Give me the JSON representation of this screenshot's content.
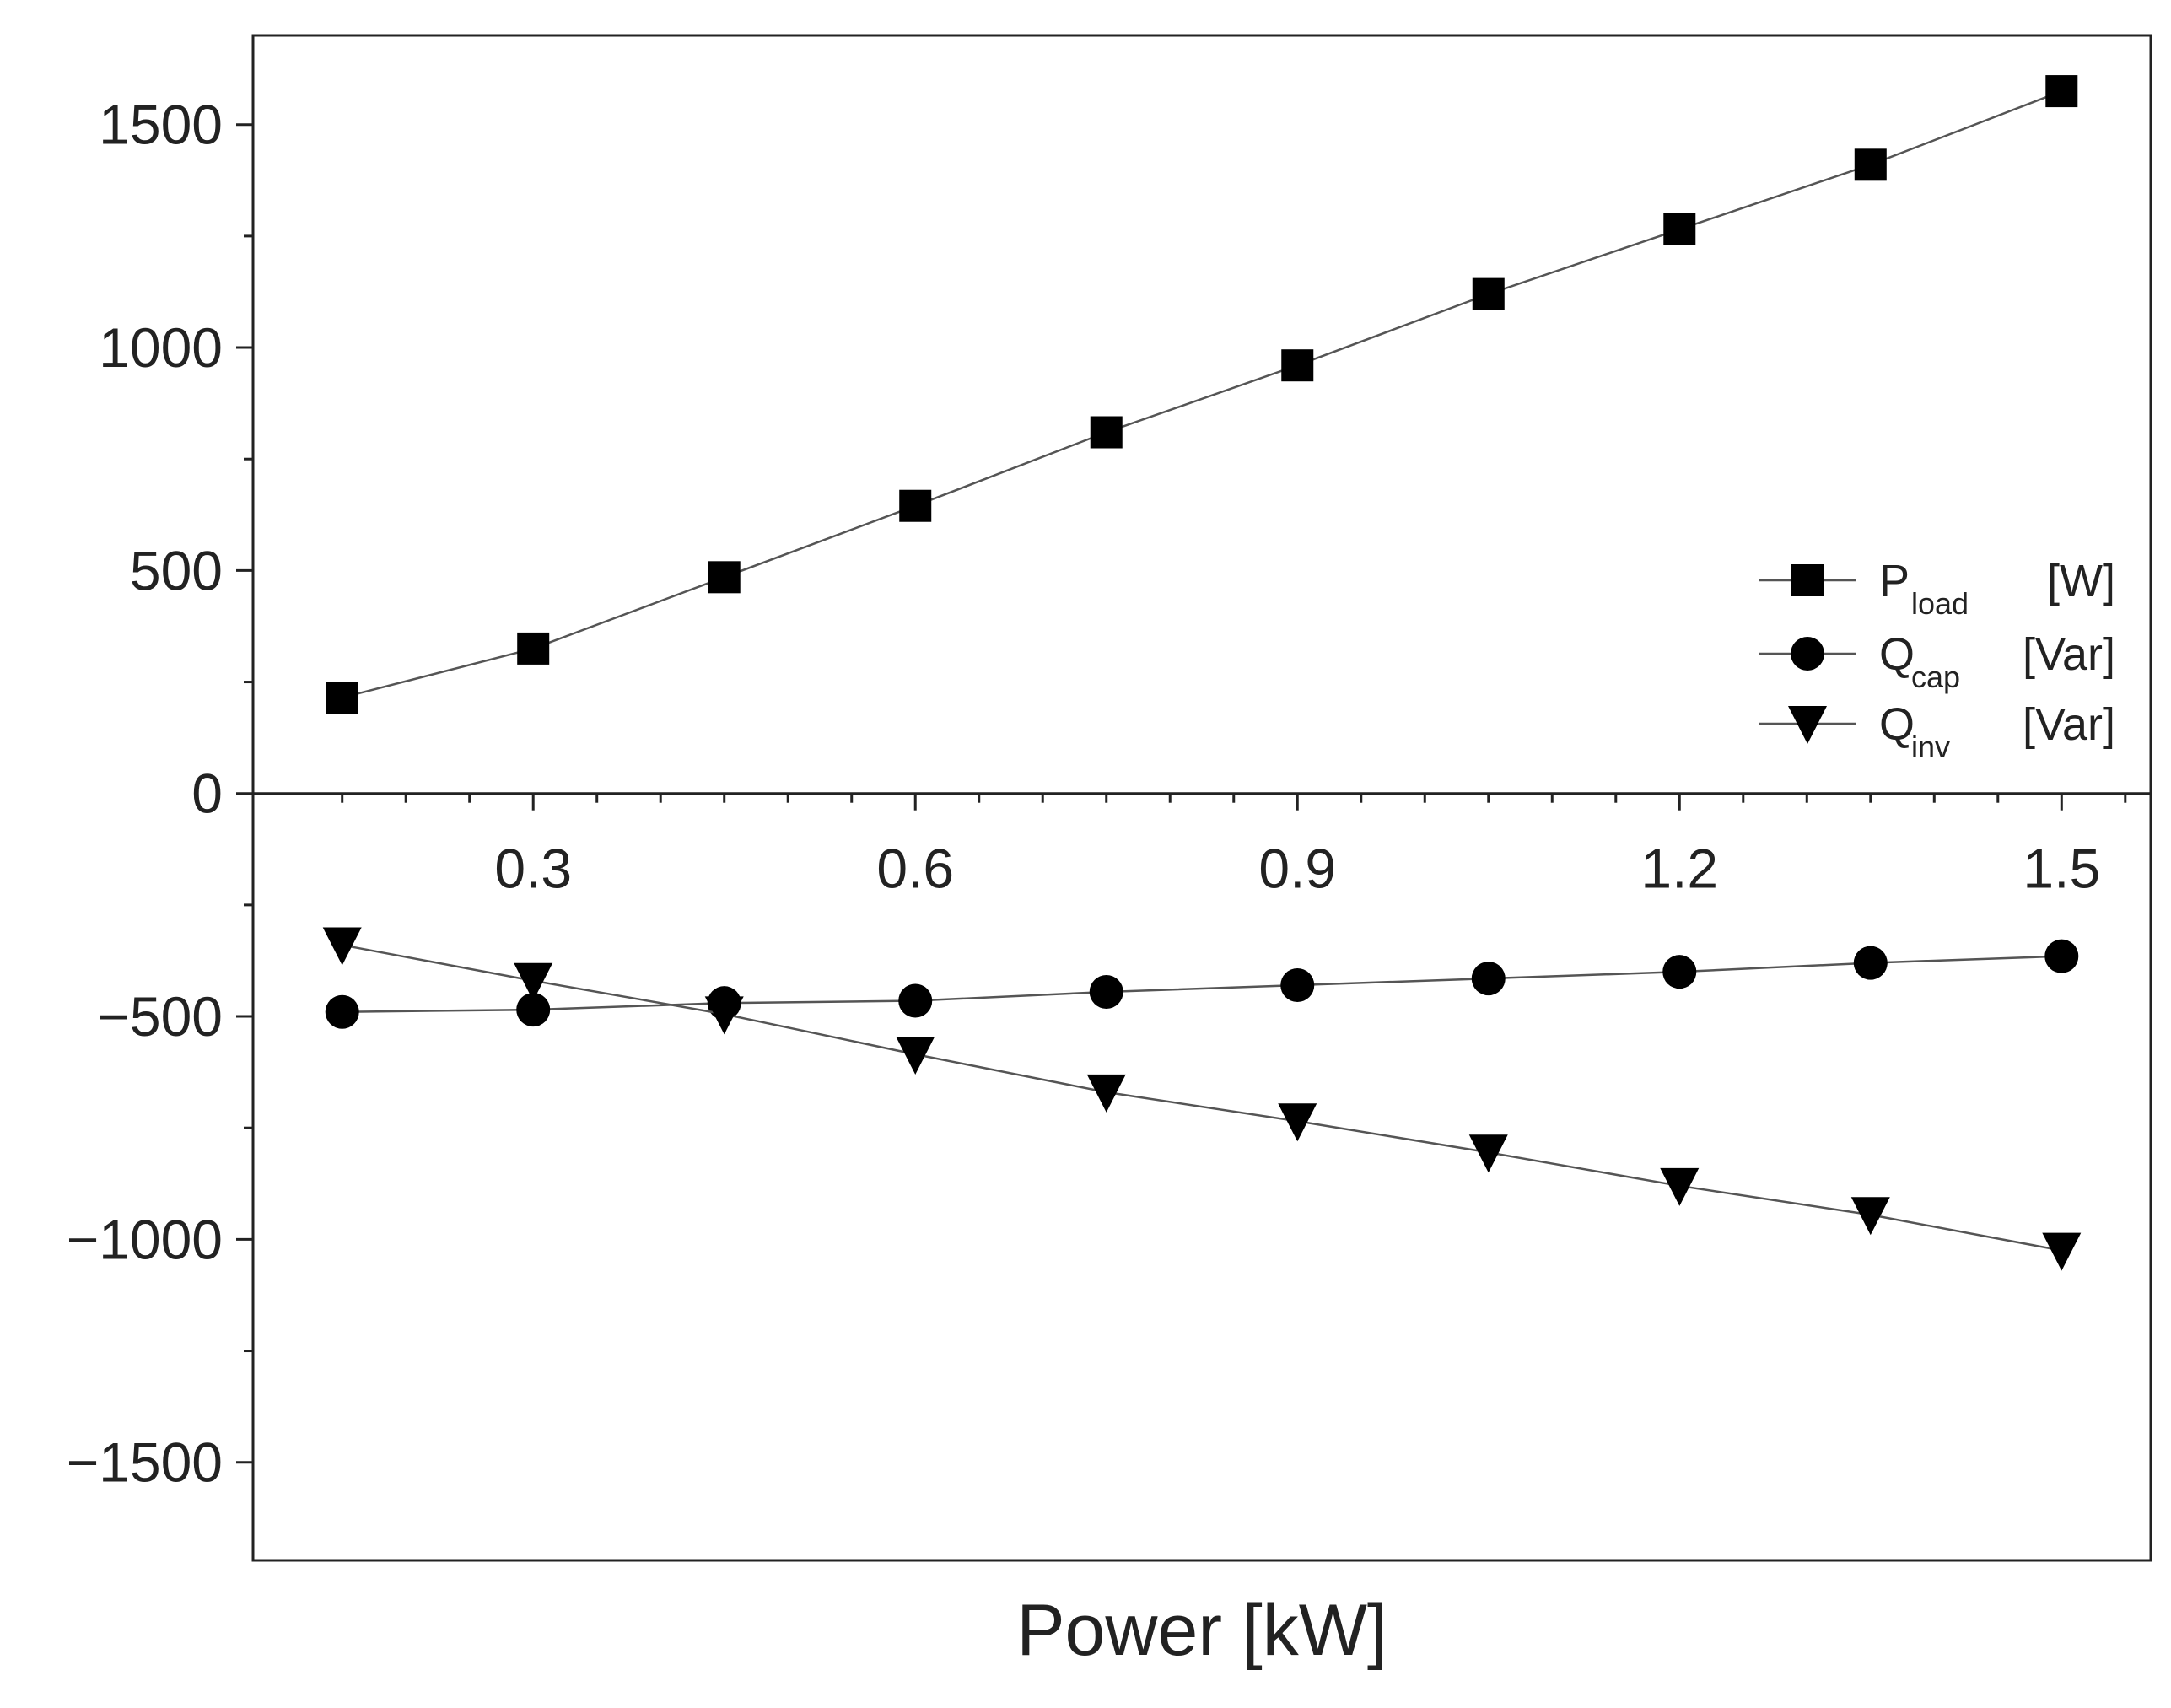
{
  "chart_data": {
    "type": "line",
    "title": "",
    "xlabel": "Power [kW]",
    "ylabel": "",
    "xlim": [
      0.08,
      1.57
    ],
    "ylim": [
      -1720,
      1700
    ],
    "x_ticks": [
      0.3,
      0.6,
      0.9,
      1.2,
      1.5
    ],
    "x_tick_labels": [
      "0.3",
      "0.6",
      "0.9",
      "1.2",
      "1.5"
    ],
    "x_minor_ticks": [
      0.15,
      0.2,
      0.25,
      0.35,
      0.4,
      0.45,
      0.5,
      0.55,
      0.65,
      0.7,
      0.75,
      0.8,
      0.85,
      0.95,
      1.0,
      1.05,
      1.1,
      1.15,
      1.25,
      1.3,
      1.35,
      1.4,
      1.45,
      1.55
    ],
    "y_ticks": [
      -1500,
      -1000,
      -500,
      0,
      500,
      1000,
      1500
    ],
    "y_tick_labels": [
      "−1500",
      "−1000",
      "−500",
      "0",
      "500",
      "1000",
      "1500"
    ],
    "y_minor_ticks": [
      -1250,
      -750,
      -250,
      250,
      750,
      1250
    ],
    "x": [
      0.15,
      0.3,
      0.45,
      0.6,
      0.75,
      0.9,
      1.05,
      1.2,
      1.35,
      1.5
    ],
    "series": [
      {
        "name": "P_load [W]",
        "label_main": "P",
        "label_sub": "load",
        "label_unit": "[W]",
        "marker": "square",
        "values": [
          215,
          325,
          485,
          645,
          810,
          960,
          1120,
          1265,
          1410,
          1575
        ]
      },
      {
        "name": "Q_cap [Var]",
        "label_main": "Q",
        "label_sub": "cap",
        "label_unit": "[Var]",
        "marker": "circle",
        "values": [
          -490,
          -485,
          -470,
          -465,
          -445,
          -430,
          -415,
          -400,
          -380,
          -365
        ]
      },
      {
        "name": "Q_inv [Var]",
        "label_main": "Q",
        "label_sub": "inv",
        "label_unit": "[Var]",
        "marker": "triangle-down",
        "values": [
          -340,
          -420,
          -495,
          -585,
          -670,
          -735,
          -805,
          -880,
          -945,
          -1025
        ]
      }
    ],
    "legend_position": "right-center",
    "grid": false
  },
  "colors": {
    "marker": "#000000",
    "line": "#555555",
    "frame": "#222222",
    "text": "#222222"
  }
}
